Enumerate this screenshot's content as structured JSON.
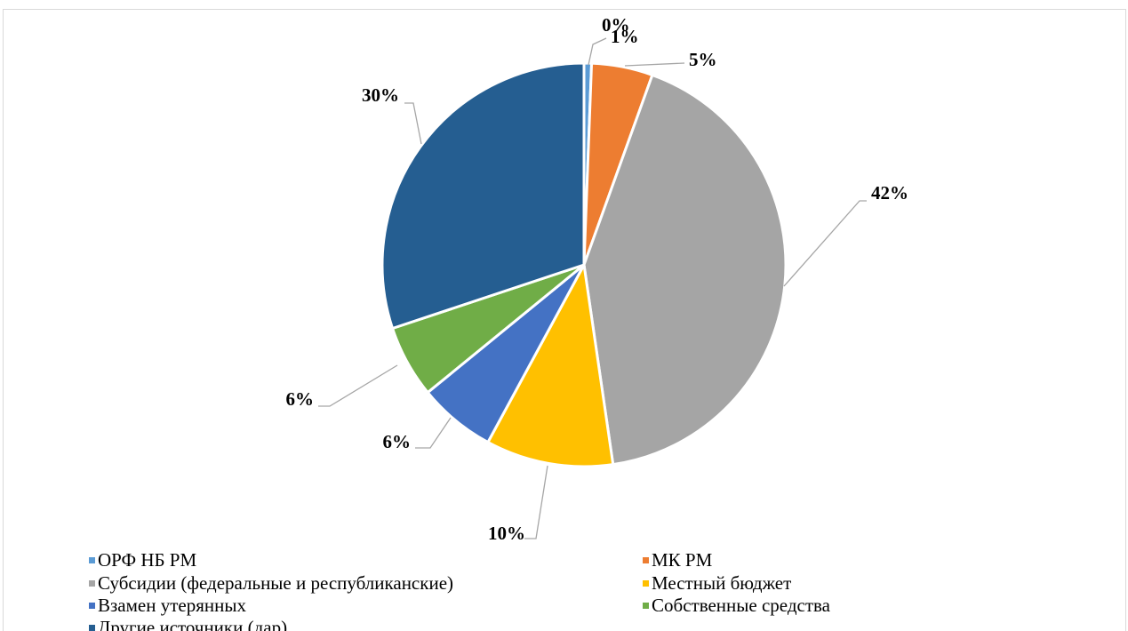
{
  "chart_data": {
    "type": "pie",
    "title": "",
    "slices": [
      {
        "name": "ОРФ НБ РМ",
        "value": 0.6,
        "label": "1%",
        "color": "#5b9bd5"
      },
      {
        "name": "МК РМ",
        "value": 4.9,
        "label": "5%",
        "color": "#ed7d31"
      },
      {
        "name": "Субсидии (федеральные и республиканские)",
        "value": 42.2,
        "label": "42%",
        "color": "#a5a5a5"
      },
      {
        "name": "Местный бюджет",
        "value": 10.2,
        "label": "10%",
        "color": "#ffc000"
      },
      {
        "name": "Взамен утерянных",
        "value": 6.2,
        "label": "6%",
        "color": "#4472c4"
      },
      {
        "name": "Собственные средства",
        "value": 5.8,
        "label": "6%",
        "color": "#70ad47"
      },
      {
        "name": "Другие источники (дар)",
        "value": 30.1,
        "label": "30%",
        "color": "#255e91"
      }
    ],
    "extra_label": "0%",
    "legend_position": "bottom"
  }
}
